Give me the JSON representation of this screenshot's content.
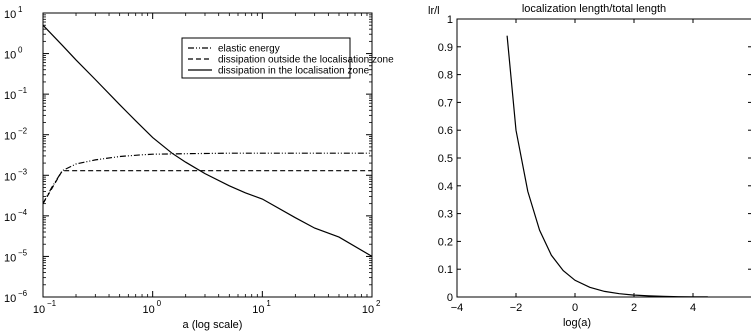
{
  "chart_data": [
    {
      "type": "line",
      "title": "",
      "xlabel": "a (log scale)",
      "ylabel": "",
      "x_scale": "log",
      "y_scale": "log",
      "xlim": [
        0.1,
        100
      ],
      "ylim": [
        1e-06,
        10
      ],
      "grid": false,
      "legend_position": "top-right",
      "x_ticks": [
        {
          "base": "10",
          "exp": "−1",
          "value": 0.1
        },
        {
          "base": "10",
          "exp": "0",
          "value": 1
        },
        {
          "base": "10",
          "exp": "1",
          "value": 10
        },
        {
          "base": "10",
          "exp": "2",
          "value": 100
        }
      ],
      "y_ticks": [
        {
          "base": "10",
          "exp": "1",
          "value": 10
        },
        {
          "base": "10",
          "exp": "0",
          "value": 1
        },
        {
          "base": "10",
          "exp": "−1",
          "value": 0.1
        },
        {
          "base": "10",
          "exp": "−2",
          "value": 0.01
        },
        {
          "base": "10",
          "exp": "−3",
          "value": 0.001
        },
        {
          "base": "10",
          "exp": "−4",
          "value": 0.0001
        },
        {
          "base": "10",
          "exp": "−5",
          "value": 1e-05
        },
        {
          "base": "10",
          "exp": "−6",
          "value": 1e-06
        }
      ],
      "series": [
        {
          "name": "elastic energy",
          "style": "dashdot",
          "x": [
            0.1,
            0.12,
            0.15,
            0.2,
            0.3,
            0.5,
            0.8,
            1,
            2,
            5,
            10,
            30,
            100
          ],
          "y": [
            0.0002,
            0.0005,
            0.0013,
            0.0019,
            0.0024,
            0.0029,
            0.0032,
            0.0033,
            0.0034,
            0.0035,
            0.0035,
            0.0035,
            0.0035
          ]
        },
        {
          "name": "dissipation outside the localisation zone",
          "style": "dashed",
          "x": [
            0.1,
            0.15,
            100
          ],
          "y": [
            0.0002,
            0.0013,
            0.0013
          ]
        },
        {
          "name": "dissipation in the localisation zone",
          "style": "solid",
          "x": [
            0.1,
            0.15,
            0.2,
            0.3,
            0.5,
            0.7,
            1,
            1.5,
            2,
            3,
            5,
            7,
            10,
            20,
            30,
            50,
            100
          ],
          "y": [
            5,
            1.6,
            0.7,
            0.23,
            0.055,
            0.022,
            0.0085,
            0.0035,
            0.0021,
            0.0011,
            0.00055,
            0.00037,
            0.00026,
            9e-05,
            5e-05,
            3e-05,
            1e-05
          ]
        }
      ]
    },
    {
      "type": "line",
      "title": "localization length/total length",
      "xlabel": "log(a)",
      "ylabel": "lr/l",
      "xlim": [
        -4,
        6
      ],
      "ylim": [
        0,
        1
      ],
      "grid": false,
      "x_tick_labels": [
        {
          "label": "−4",
          "value": -4
        },
        {
          "label": "−2",
          "value": -2
        },
        {
          "label": "0",
          "value": 0
        },
        {
          "label": "2",
          "value": 2
        },
        {
          "label": "4",
          "value": 4
        }
      ],
      "y_tick_labels": [
        {
          "label": "0",
          "value": 0
        },
        {
          "label": "0.1",
          "value": 0.1
        },
        {
          "label": "0.2",
          "value": 0.2
        },
        {
          "label": "0.3",
          "value": 0.3
        },
        {
          "label": "0.4",
          "value": 0.4
        },
        {
          "label": "0.5",
          "value": 0.5
        },
        {
          "label": "0.6",
          "value": 0.6
        },
        {
          "label": "0.7",
          "value": 0.7
        },
        {
          "label": "0.8",
          "value": 0.8
        },
        {
          "label": "0.9",
          "value": 0.9
        },
        {
          "label": "1",
          "value": 1
        }
      ],
      "series": [
        {
          "x": [
            -2.3,
            -2.0,
            -1.6,
            -1.2,
            -0.8,
            -0.4,
            0,
            0.5,
            1,
            1.5,
            2,
            2.5,
            3,
            3.5,
            4,
            4.5
          ],
          "y": [
            0.94,
            0.6,
            0.38,
            0.24,
            0.15,
            0.095,
            0.06,
            0.035,
            0.02,
            0.012,
            0.007,
            0.004,
            0.002,
            0.001,
            0.0005,
            0.0002
          ]
        }
      ]
    }
  ]
}
